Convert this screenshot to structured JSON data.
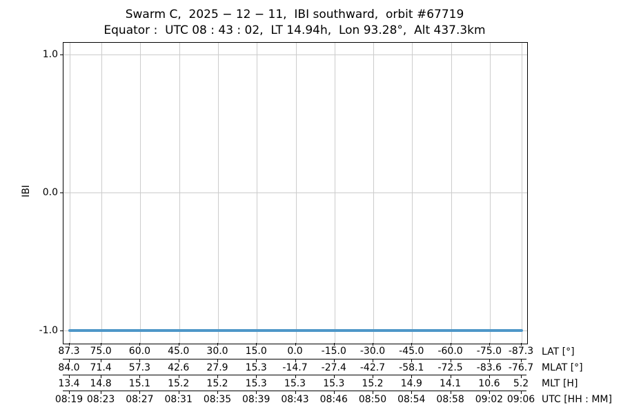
{
  "chart_data": {
    "type": "line",
    "title": "Swarm C,  2025 − 12 − 11,  IBI southward,  orbit #67719",
    "subtitle": "Equator :  UTC 08 : 43 : 02,  LT 14.94h,  Lon 93.28°,  Alt 437.3km",
    "ylabel": "IBI",
    "yticks": [
      {
        "value": 1.0,
        "label": "1.0"
      },
      {
        "value": 0.0,
        "label": "0.0"
      },
      {
        "value": -1.0,
        "label": "-1.0"
      }
    ],
    "ylim": [
      -1.095,
      1.085
    ],
    "xlim_lat": [
      87.3,
      -87.3
    ],
    "grid": true,
    "grid_color": "#cccccc",
    "series": [
      {
        "name": "IBI",
        "y_value": -1.0,
        "x_frac_start": 0.01,
        "x_frac_end": 0.991,
        "color": "#4e97c8"
      }
    ],
    "x_axis_rows": [
      {
        "label": "LAT [°]",
        "values": [
          "87.3",
          "75.0",
          "60.0",
          "45.0",
          "30.0",
          "15.0",
          "0.0",
          "-15.0",
          "-30.0",
          "-45.0",
          "-60.0",
          "-75.0",
          "-87.3"
        ]
      },
      {
        "label": "MLAT [°]",
        "values": [
          "84.0",
          "71.4",
          "57.3",
          "42.6",
          "27.9",
          "15.3",
          "-14.7",
          "-27.4",
          "-42.7",
          "-58.1",
          "-72.5",
          "-83.6",
          "-76.7"
        ]
      },
      {
        "label": "MLT [H]",
        "values": [
          "13.4",
          "14.8",
          "15.1",
          "15.2",
          "15.2",
          "15.3",
          "15.3",
          "15.3",
          "15.2",
          "14.9",
          "14.1",
          "10.6",
          "5.2"
        ]
      },
      {
        "label": "UTC [HH : MM]",
        "values": [
          "08:19",
          "08:23",
          "08:27",
          "08:31",
          "08:35",
          "08:39",
          "08:43",
          "08:46",
          "08:50",
          "08:54",
          "08:58",
          "09:02",
          "09:06"
        ]
      }
    ]
  }
}
